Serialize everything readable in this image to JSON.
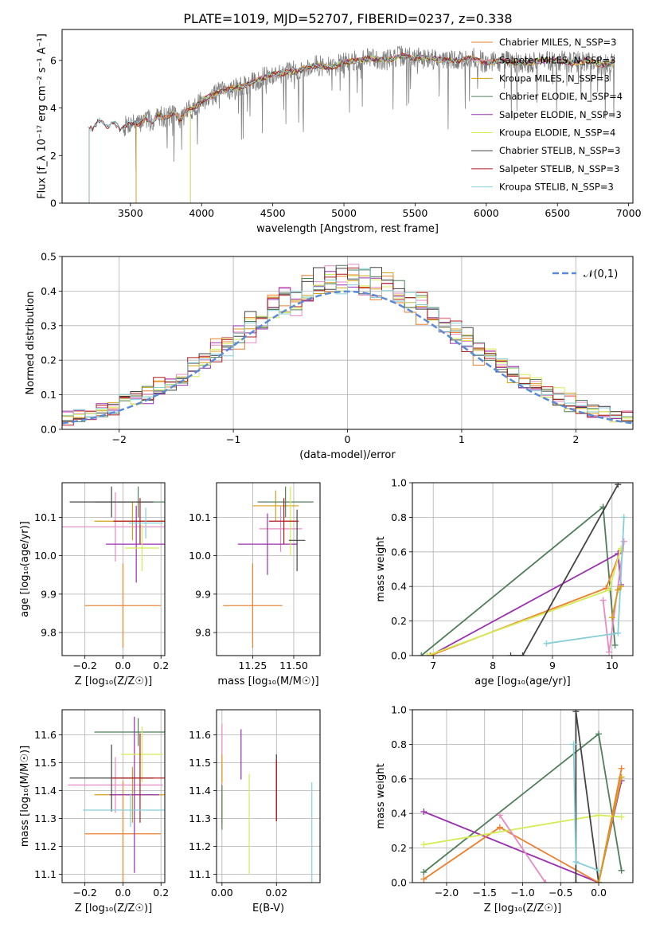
{
  "title": "PLATE=1019, MJD=52707, FIBERID=0237, z=0.338",
  "colors": {
    "chabrier_miles": "#ee7f2d",
    "salpeter_miles": "#e78ac3",
    "kroupa_miles": "#d4a017",
    "chabrier_elodie": "#4f7f5a",
    "salpeter_elodie": "#9b30b0",
    "kroupa_elodie": "#d4ec55",
    "chabrier_stelib": "#444444",
    "salpeter_stelib": "#b01c1c",
    "kroupa_stelib": "#86cfd6",
    "data": "#808080",
    "normal": "#5b8bd6"
  },
  "chart_data": [
    {
      "id": "spectrum",
      "type": "line",
      "xlabel": "wavelength [Angstrom, rest frame]",
      "ylabel": "Flux [f_λ 10⁻¹⁷ erg cm⁻² s⁻¹ A⁻¹]",
      "xlim": [
        3020,
        7030
      ],
      "ylim": [
        0,
        7.3
      ],
      "xticks": [
        "3500",
        "4000",
        "4500",
        "5000",
        "5500",
        "6000",
        "6500",
        "7000"
      ],
      "yticks": [
        "0",
        "2",
        "4",
        "6"
      ],
      "grid": false,
      "legend_position": "top-right",
      "data_series": {
        "name": "data",
        "x": [
          3200,
          3230,
          3280,
          3330,
          3380,
          3430,
          3480,
          3520,
          3560,
          3600,
          3650,
          3700,
          3750,
          3800,
          3850,
          3900,
          3950,
          4000,
          4100,
          4200,
          4300,
          4400,
          4500,
          4600,
          4700,
          4800,
          4900,
          5000,
          5100,
          5200,
          5300,
          5400,
          5500,
          5600,
          5700,
          5800,
          5900,
          6000,
          6100,
          6200,
          6300,
          6400,
          6500,
          6600,
          6700,
          6800,
          6900
        ],
        "y": [
          3.2,
          3.1,
          3.5,
          3.2,
          3.4,
          3.1,
          3.3,
          3.4,
          3.3,
          3.6,
          3.4,
          3.7,
          3.6,
          3.8,
          3.5,
          3.9,
          4.0,
          4.3,
          4.6,
          4.8,
          4.9,
          5.2,
          5.4,
          5.5,
          5.6,
          5.8,
          5.7,
          5.9,
          6.0,
          6.1,
          6.0,
          6.2,
          6.1,
          6.1,
          6.0,
          6.0,
          6.1,
          5.9,
          6.0,
          5.9,
          5.9,
          6.0,
          6.0,
          5.9,
          6.0,
          5.8,
          5.9
        ]
      },
      "series": [
        {
          "name": "Chabrier MILES, N_SSP=3",
          "start": 3540
        },
        {
          "name": "Salpeter MILES, N_SSP=3",
          "start": 3540
        },
        {
          "name": "Kroupa MILES, N_SSP=3",
          "start": 3540
        },
        {
          "name": "Chabrier ELODIE, N_SSP=4",
          "start": 3920
        },
        {
          "name": "Salpeter ELODIE, N_SSP=3",
          "start": 3920
        },
        {
          "name": "Kroupa ELODIE, N_SSP=4",
          "start": 3920
        },
        {
          "name": "Chabrier STELIB, N_SSP=3",
          "start": 3210
        },
        {
          "name": "Salpeter STELIB, N_SSP=3",
          "start": 3210
        },
        {
          "name": "Kroupa STELIB, N_SSP=3",
          "start": 3210
        }
      ]
    },
    {
      "id": "histogram",
      "type": "bar",
      "xlabel": "(data-model)/error",
      "ylabel": "Normed distribution",
      "xlim": [
        -2.5,
        2.5
      ],
      "ylim": [
        0,
        0.5
      ],
      "xticks": [
        "−2",
        "−1",
        "0",
        "1",
        "2"
      ],
      "yticks": [
        "0.0",
        "0.1",
        "0.2",
        "0.3",
        "0.4",
        "0.5"
      ],
      "grid": true,
      "legend": "𝒩(0,1)",
      "legend_position": "top-right",
      "bin_width": 0.1,
      "reference_curve": "normal(0,1)"
    },
    {
      "id": "age_vs_Z",
      "type": "scatter",
      "xlabel": "Z [log₁₀(Z/Z☉)]",
      "ylabel": "age  [log₁₀(age/yr)]",
      "xlim": [
        -0.32,
        0.22
      ],
      "ylim": [
        9.74,
        10.19
      ],
      "xticks": [
        "−0.2",
        "0.0",
        "0.2"
      ],
      "yticks": [
        "9.8",
        "9.9",
        "10.0",
        "10.1"
      ],
      "grid": true,
      "points": [
        {
          "x": 0.0,
          "xerr": 0.2,
          "y": 9.87,
          "yerr": 0.11
        },
        {
          "x": -0.04,
          "xerr": 0.28,
          "y": 10.075,
          "yerr": 0.09
        },
        {
          "x": 0.05,
          "xerr": 0.2,
          "y": 10.09,
          "yerr": 0.05
        },
        {
          "x": 0.08,
          "xerr": 0.23,
          "y": 10.14,
          "yerr": 0.04
        },
        {
          "x": 0.07,
          "xerr": 0.16,
          "y": 10.03,
          "yerr": 0.1
        },
        {
          "x": 0.1,
          "xerr": 0.09,
          "y": 10.02,
          "yerr": 0.06
        },
        {
          "x": -0.06,
          "xerr": 0.22,
          "y": 10.14,
          "yerr": 0.04
        },
        {
          "x": 0.09,
          "xerr": 0.14,
          "y": 10.09,
          "yerr": 0.06
        },
        {
          "x": 0.12,
          "xerr": 0.09,
          "y": 10.085,
          "yerr": 0.04
        }
      ]
    },
    {
      "id": "age_vs_mass",
      "type": "scatter",
      "xlabel": "mass [log₁₀(M/M☉)]",
      "ylabel": "",
      "xlim": [
        11.03,
        11.66
      ],
      "ylim": [
        9.74,
        10.19
      ],
      "xticks": [
        "11.25",
        "11.50"
      ],
      "yticks": [
        "9.8",
        "9.9",
        "10.0",
        "10.1"
      ],
      "grid": true,
      "points": [
        {
          "x": 11.25,
          "xerr": 0.18,
          "y": 9.87,
          "yerr": 0.11
        },
        {
          "x": 11.42,
          "xerr": 0.13,
          "y": 10.07,
          "yerr": 0.06
        },
        {
          "x": 11.39,
          "xerr": 0.14,
          "y": 10.13,
          "yerr": 0.04
        },
        {
          "x": 11.45,
          "xerr": 0.17,
          "y": 10.14,
          "yerr": 0.04
        },
        {
          "x": 11.34,
          "xerr": 0.18,
          "y": 10.03,
          "yerr": 0.08
        },
        {
          "x": 11.48,
          "xerr": 0.04,
          "y": 10.09,
          "yerr": 0.09
        },
        {
          "x": 11.52,
          "xerr": 0.05,
          "y": 10.04,
          "yerr": 0.08
        },
        {
          "x": 11.44,
          "xerr": 0.09,
          "y": 10.09,
          "yerr": 0.06
        }
      ]
    },
    {
      "id": "weight_vs_age",
      "type": "line",
      "xlabel": "age  [log₁₀(age/yr)]",
      "ylabel": "mass weight",
      "xlim": [
        6.65,
        10.35
      ],
      "ylim": [
        0,
        1.0
      ],
      "xticks": [
        "7",
        "8",
        "9",
        "10"
      ],
      "yticks": [
        "0.0",
        "0.2",
        "0.4",
        "0.6",
        "0.8",
        "1.0"
      ],
      "grid": true,
      "series": [
        {
          "x": [
            6.8,
            9.85,
            10.05
          ],
          "y": [
            0.0,
            0.86,
            0.06
          ]
        },
        {
          "x": [
            6.95,
            10.1,
            10.15
          ],
          "y": [
            0.0,
            0.59,
            0.41
          ]
        },
        {
          "x": [
            6.95,
            9.9,
            10.15
          ],
          "y": [
            0.0,
            0.39,
            0.61
          ]
        },
        {
          "x": [
            6.9,
            9.95,
            10.15
          ],
          "y": [
            0.0,
            0.38,
            0.62
          ]
        },
        {
          "x": [
            9.85,
            9.95,
            10.2
          ],
          "y": [
            0.32,
            0.02,
            0.66
          ]
        },
        {
          "x": [
            8.3,
            8.5,
            10.1
          ],
          "y": [
            0.0,
            0.0,
            0.99
          ]
        },
        {
          "x": [
            8.9,
            10.1,
            10.2
          ],
          "y": [
            0.07,
            0.13,
            0.8
          ]
        },
        {
          "x": [
            10.0,
            10.1,
            10.15
          ],
          "y": [
            0.22,
            0.38,
            0.4
          ]
        }
      ]
    },
    {
      "id": "mass_vs_Z",
      "type": "scatter",
      "xlabel": "Z [log₁₀(Z/Z☉)]",
      "ylabel": "mass [log₁₀(M/M☉)]",
      "xlim": [
        -0.32,
        0.22
      ],
      "ylim": [
        11.07,
        11.69
      ],
      "xticks": [
        "−0.2",
        "0.0",
        "0.2"
      ],
      "yticks": [
        "11.1",
        "11.2",
        "11.3",
        "11.4",
        "11.5",
        "11.6"
      ],
      "grid": true,
      "points": [
        {
          "x": 0.0,
          "xerr": 0.2,
          "y": 11.245,
          "yerr": 0.19
        },
        {
          "x": -0.04,
          "xerr": 0.25,
          "y": 11.42,
          "yerr": 0.1
        },
        {
          "x": 0.05,
          "xerr": 0.2,
          "y": 11.385,
          "yerr": 0.1
        },
        {
          "x": 0.08,
          "xerr": 0.23,
          "y": 11.61,
          "yerr": 0.05
        },
        {
          "x": 0.06,
          "xerr": 0.13,
          "y": 11.385,
          "yerr": 0.28
        },
        {
          "x": 0.1,
          "xerr": 0.11,
          "y": 11.53,
          "yerr": 0.1
        },
        {
          "x": -0.06,
          "xerr": 0.22,
          "y": 11.445,
          "yerr": 0.12
        },
        {
          "x": 0.09,
          "xerr": 0.15,
          "y": 11.445,
          "yerr": 0.16
        },
        {
          "x": 0.04,
          "xerr": 0.25,
          "y": 11.33,
          "yerr": 0.06
        }
      ]
    },
    {
      "id": "mass_vs_ebv",
      "type": "scatter",
      "xlabel": "E(B-V)",
      "ylabel": "",
      "xlim": [
        -0.002,
        0.036
      ],
      "ylim": [
        11.07,
        11.69
      ],
      "xticks": [
        "0.00",
        "0.02"
      ],
      "yticks": [
        "11.1",
        "11.2",
        "11.3",
        "11.4",
        "11.5",
        "11.6"
      ],
      "grid": true,
      "points": [
        {
          "x": 0.0,
          "y": 11.35,
          "yerr": 0.07
        },
        {
          "x": 0.0,
          "y": 11.53,
          "yerr": 0.11
        },
        {
          "x": 0.0,
          "y": 11.48,
          "yerr": 0.05
        },
        {
          "x": 0.0,
          "y": 11.34,
          "yerr": 0.08
        },
        {
          "x": 0.007,
          "y": 11.53,
          "yerr": 0.09
        },
        {
          "x": 0.01,
          "y": 11.28,
          "yerr": 0.18
        },
        {
          "x": 0.02,
          "y": 11.41,
          "yerr": 0.12
        },
        {
          "x": 0.02,
          "y": 11.4,
          "yerr": 0.11
        },
        {
          "x": 0.033,
          "y": 11.25,
          "yerr": 0.18
        }
      ]
    },
    {
      "id": "weight_vs_Z",
      "type": "line",
      "xlabel": "Z [log₁₀(Z/Z☉)]",
      "ylabel": "mass weight",
      "xlim": [
        -2.45,
        0.45
      ],
      "ylim": [
        0,
        1.0
      ],
      "xticks": [
        "−2.0",
        "−1.5",
        "−1.0",
        "−0.5",
        "0.0"
      ],
      "yticks": [
        "0.0",
        "0.2",
        "0.4",
        "0.6",
        "0.8",
        "1.0"
      ],
      "grid": true,
      "series": [
        {
          "x": [
            -2.3,
            0.0,
            0.3
          ],
          "y": [
            0.06,
            0.86,
            0.07
          ]
        },
        {
          "x": [
            -2.3,
            0.0,
            0.3
          ],
          "y": [
            0.41,
            0.0,
            0.59
          ]
        },
        {
          "x": [
            -2.3,
            -1.3,
            0.0,
            0.3
          ],
          "y": [
            0.02,
            0.32,
            0.0,
            0.66
          ]
        },
        {
          "x": [
            -2.3,
            0.0,
            0.3
          ],
          "y": [
            0.22,
            0.39,
            0.38
          ]
        },
        {
          "x": [
            -1.3,
            -0.7
          ],
          "y": [
            0.39,
            0.0
          ]
        },
        {
          "x": [
            -0.3,
            -0.3,
            0.0
          ],
          "y": [
            0.0,
            0.99,
            0.0
          ]
        },
        {
          "x": [
            -0.33,
            -0.3,
            0.0
          ],
          "y": [
            0.8,
            0.12,
            0.07
          ]
        },
        {
          "x": [
            0.0,
            0.3
          ],
          "y": [
            0.0,
            0.61
          ]
        }
      ]
    }
  ]
}
